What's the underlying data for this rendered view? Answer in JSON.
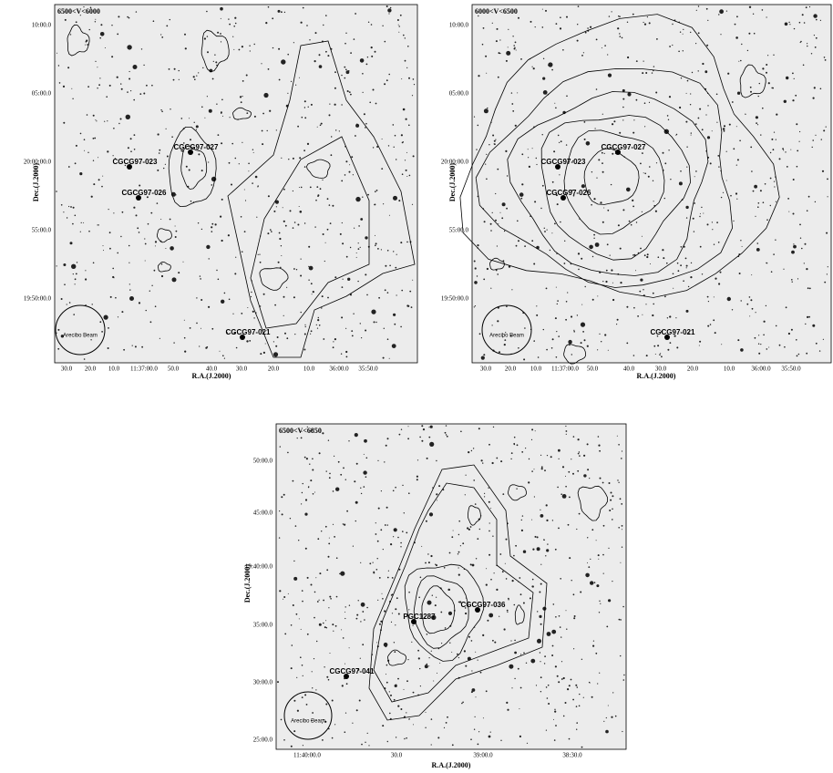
{
  "panels": [
    {
      "label": "6500<V<6000",
      "y_label": "Dec.(J.2000)",
      "x_label": "R.A.(J.2000)",
      "y_ticks": [
        "10:00.0",
        "05:00.0",
        "20:00:00.0",
        "55:00.0",
        "19:50:00.0"
      ],
      "x_ticks": [
        "30.0",
        "20.0",
        "10.0",
        "11:37:00.0",
        "50.0",
        "40.0",
        "30.0",
        "20.0",
        "10.0",
        "36:00.0",
        "35:50.0"
      ],
      "galaxies": [
        "CGCG97-027",
        "CGCG97-023",
        "CGCG97-026",
        "CGCG97-021"
      ],
      "beam": "Arecibo Beam"
    },
    {
      "label": "6000<V<6500",
      "y_label": "Dec.(J.2000)",
      "x_label": "R.A.(J.2000)",
      "y_ticks": [
        "10:00.0",
        "05:00.0",
        "20:00:00.0",
        "55:00.0",
        "19:50:00.0"
      ],
      "x_ticks": [
        "30.0",
        "20.0",
        "10.0",
        "11:37:00.0",
        "50.0",
        "40.0",
        "30.0",
        "20.0",
        "10.0",
        "36:00.0",
        "35:50.0"
      ],
      "galaxies": [
        "CGCG97-027",
        "CGCG97-023",
        "CGCG97-026",
        "CGCG97-021"
      ],
      "beam": "Arecibo Beam"
    },
    {
      "label": "6500<V<6850",
      "y_label": "Dec.(J.2000)",
      "x_label": "R.A.(J.2000)",
      "y_ticks": [
        "50:00.0",
        "45:00.0",
        "19:40:00.0",
        "35:00.0",
        "30:00.0",
        "25:00.0"
      ],
      "x_ticks": [
        "11:40:00.0",
        "30.0",
        "39:00.0",
        "38:30.0"
      ],
      "galaxies": [
        "CGCG97-036",
        "PGC1287",
        "CGCG97-041"
      ],
      "beam": "Arecibo Beam"
    }
  ]
}
